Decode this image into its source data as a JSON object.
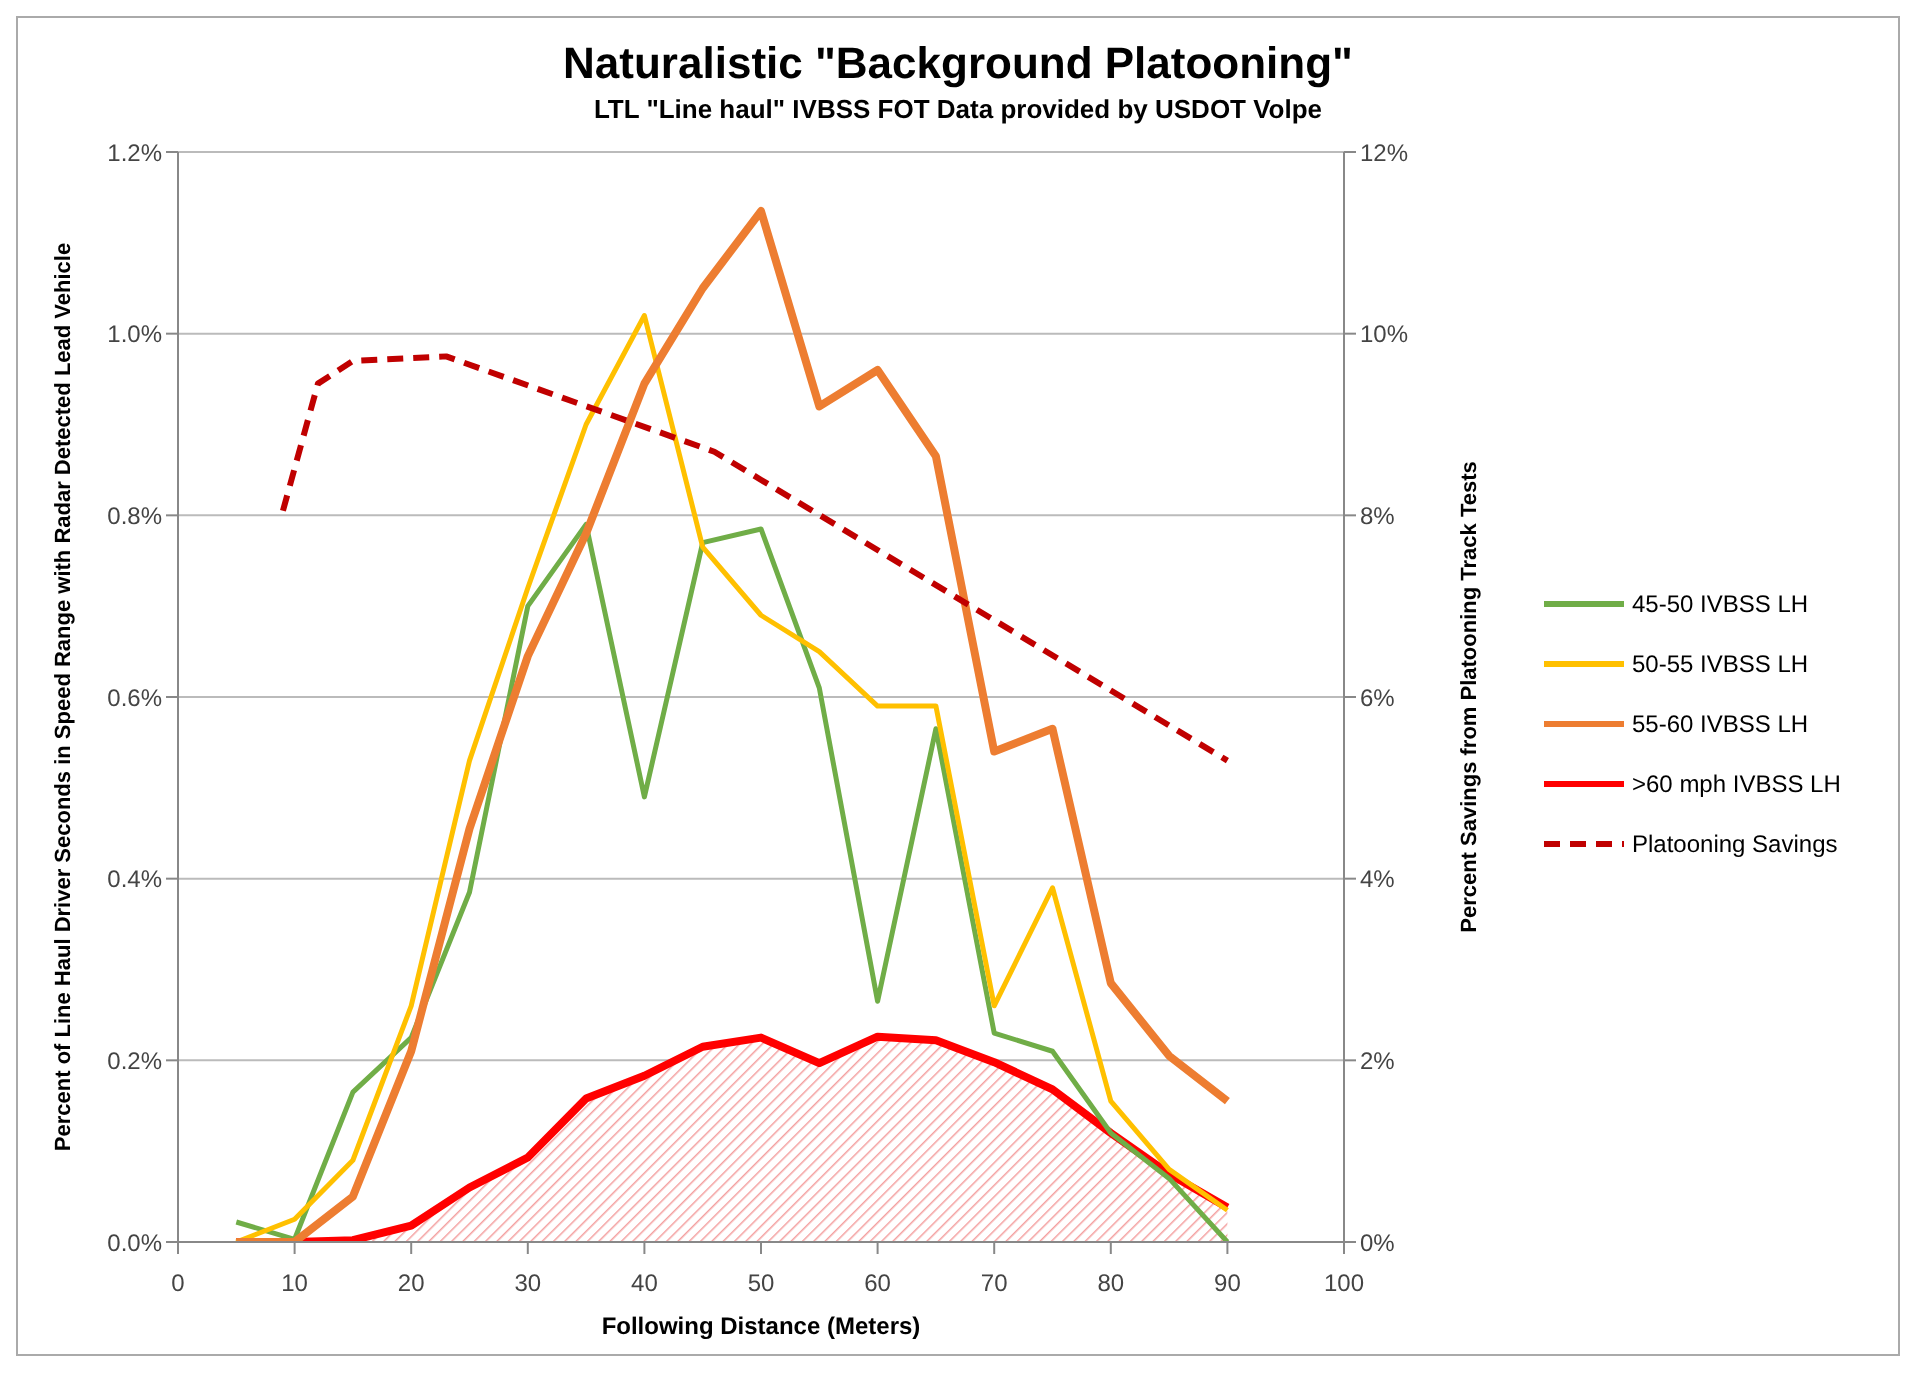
{
  "chart_data": {
    "type": "line",
    "title": "Naturalistic \"Background Platooning\"",
    "subtitle": "LTL \"Line haul\" IVBSS FOT Data provided by USDOT Volpe",
    "xlabel": "Following Distance (Meters)",
    "ylabel": "Percent of Line Haul Driver Seconds in Speed Range with Radar Detected Lead Vehicle",
    "y2label": "Percent Savings from Platooning Track Tests",
    "x": [
      5,
      10,
      15,
      20,
      25,
      30,
      35,
      40,
      45,
      50,
      55,
      60,
      65,
      70,
      75,
      80,
      85,
      90
    ],
    "series": [
      {
        "name": "45-50 IVBSS LH",
        "color": "#70ad47",
        "values": [
          0.022,
          0.003,
          0.165,
          0.225,
          0.385,
          0.7,
          0.79,
          0.49,
          0.77,
          0.785,
          0.61,
          0.265,
          0.565,
          0.23,
          0.21,
          0.12,
          0.07,
          0.0
        ]
      },
      {
        "name": "50-55 IVBSS LH",
        "color": "#ffc000",
        "values": [
          0.0,
          0.025,
          0.09,
          0.26,
          0.53,
          0.72,
          0.9,
          1.02,
          0.765,
          0.69,
          0.65,
          0.59,
          0.59,
          0.26,
          0.39,
          0.155,
          0.08,
          0.035
        ]
      },
      {
        "name": "55-60 IVBSS LH",
        "color": "#ed7d31",
        "values": [
          0.0,
          0.0,
          0.05,
          0.21,
          0.455,
          0.645,
          0.78,
          0.945,
          1.05,
          1.135,
          0.92,
          0.96,
          0.865,
          0.54,
          0.565,
          0.285,
          0.205,
          0.155
        ]
      },
      {
        "name": ">60 mph IVBSS LH",
        "type": "area",
        "color": "#ff0000",
        "values": [
          0.0,
          0.0,
          0.002,
          0.018,
          0.06,
          0.093,
          0.158,
          0.183,
          0.215,
          0.225,
          0.197,
          0.226,
          0.222,
          0.198,
          0.168,
          0.12,
          0.075,
          0.038
        ]
      },
      {
        "name": "Platooning Savings",
        "color": "#c00000",
        "axis": "y2",
        "line_style": "dashed",
        "x": [
          9,
          12,
          15,
          23,
          46,
          90
        ],
        "values": [
          8.05,
          9.45,
          9.7,
          9.75,
          8.7,
          5.3
        ]
      }
    ],
    "xlim": [
      0,
      100
    ],
    "xticks": [
      0,
      10,
      20,
      30,
      40,
      50,
      60,
      70,
      80,
      90,
      100
    ],
    "ylim": [
      0,
      1.2
    ],
    "yticks": [
      {
        "value": 0,
        "label": "0.0%"
      },
      {
        "value": 0.2,
        "label": "0.2%"
      },
      {
        "value": 0.4,
        "label": "0.4%"
      },
      {
        "value": 0.6,
        "label": "0.6%"
      },
      {
        "value": 0.8,
        "label": "0.8%"
      },
      {
        "value": 1.0,
        "label": "1.0%"
      },
      {
        "value": 1.2,
        "label": "1.2%"
      }
    ],
    "y2lim": [
      0,
      12
    ],
    "y2ticks": [
      {
        "value": 0,
        "label": "0%"
      },
      {
        "value": 2,
        "label": "2%"
      },
      {
        "value": 4,
        "label": "4%"
      },
      {
        "value": 6,
        "label": "6%"
      },
      {
        "value": 8,
        "label": "8%"
      },
      {
        "value": 10,
        "label": "10%"
      },
      {
        "value": 12,
        "label": "12%"
      }
    ],
    "grid": "y",
    "legend": "right",
    "marker": "none"
  }
}
